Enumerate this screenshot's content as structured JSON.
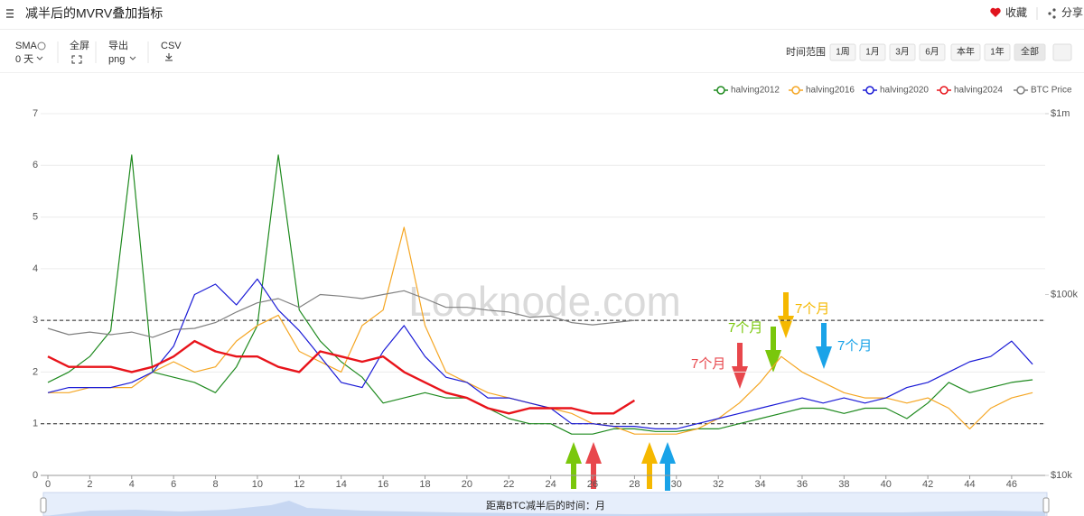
{
  "header": {
    "title": "减半后的MVRV叠加指标",
    "favorite": "收藏",
    "share": "分享"
  },
  "toolbar": {
    "sma_label": "SMA",
    "sma_value": "0 天",
    "fullscreen": "全屏",
    "export_label": "导出",
    "export_value": "png",
    "csv": "CSV",
    "range_label": "时间范围",
    "ranges": [
      "1周",
      "1月",
      "3月",
      "6月",
      "本年",
      "1年",
      "全部"
    ]
  },
  "chart_data": {
    "type": "line",
    "x_label": "距离BTC减半后的时间：月",
    "watermark": "Looknode.com",
    "x": [
      0,
      1,
      2,
      3,
      4,
      5,
      6,
      7,
      8,
      9,
      10,
      11,
      12,
      13,
      14,
      15,
      16,
      17,
      18,
      19,
      20,
      21,
      22,
      23,
      24,
      25,
      26,
      27,
      28,
      29,
      30,
      31,
      32,
      33,
      34,
      35,
      36,
      37,
      38,
      39,
      40,
      41,
      42,
      43,
      44,
      45,
      46,
      47
    ],
    "xlim": [
      0,
      47.6
    ],
    "xticks": [
      0,
      2,
      4,
      6,
      8,
      10,
      12,
      14,
      16,
      18,
      20,
      22,
      24,
      26,
      28,
      30,
      32,
      34,
      36,
      38,
      40,
      42,
      44,
      46
    ],
    "ylim": [
      0,
      7
    ],
    "yticks": [
      0,
      1,
      2,
      3,
      4,
      5,
      6,
      7
    ],
    "y2lim": [
      10000,
      1000000
    ],
    "y2_log": true,
    "y2ticks": [
      {
        "value": 10000,
        "label": "$10k"
      },
      {
        "value": 100000,
        "label": "$100k"
      },
      {
        "value": 1000000,
        "label": "$1m"
      }
    ],
    "grid": true,
    "reference_lines": [
      1,
      3
    ],
    "series": [
      {
        "name": "halving2012",
        "color": "#1f8a1f",
        "values": [
          1.8,
          2.0,
          2.3,
          2.8,
          6.2,
          2.0,
          1.9,
          1.8,
          1.6,
          2.1,
          2.9,
          6.2,
          3.2,
          2.6,
          2.2,
          1.9,
          1.4,
          1.5,
          1.6,
          1.5,
          1.5,
          1.3,
          1.1,
          1.0,
          1.0,
          0.8,
          0.8,
          0.9,
          0.9,
          0.85,
          0.85,
          0.9,
          0.9,
          1.0,
          1.1,
          1.2,
          1.3,
          1.3,
          1.2,
          1.3,
          1.3,
          1.1,
          1.4,
          1.8,
          1.6,
          1.7,
          1.8,
          1.85
        ]
      },
      {
        "name": "halving2016",
        "color": "#f5a623",
        "values": [
          1.6,
          1.6,
          1.7,
          1.7,
          1.7,
          2.0,
          2.2,
          2.0,
          2.1,
          2.6,
          2.9,
          3.1,
          2.4,
          2.2,
          2.0,
          2.9,
          3.2,
          4.8,
          2.9,
          2.0,
          1.8,
          1.6,
          1.5,
          1.4,
          1.3,
          1.2,
          1.0,
          0.95,
          0.8,
          0.8,
          0.8,
          0.9,
          1.1,
          1.4,
          1.8,
          2.3,
          2.0,
          1.8,
          1.6,
          1.5,
          1.5,
          1.4,
          1.5,
          1.3,
          0.9,
          1.3,
          1.5,
          1.6
        ]
      },
      {
        "name": "halving2020",
        "color": "#1a1ad6",
        "values": [
          1.6,
          1.7,
          1.7,
          1.7,
          1.8,
          2.0,
          2.5,
          3.5,
          3.7,
          3.3,
          3.8,
          3.2,
          2.8,
          2.3,
          1.8,
          1.7,
          2.4,
          2.9,
          2.3,
          1.9,
          1.8,
          1.5,
          1.5,
          1.4,
          1.3,
          1.0,
          1.0,
          0.95,
          0.95,
          0.9,
          0.9,
          1.0,
          1.1,
          1.2,
          1.3,
          1.4,
          1.5,
          1.4,
          1.5,
          1.4,
          1.5,
          1.7,
          1.8,
          2.0,
          2.2,
          2.3,
          2.6,
          2.15
        ]
      },
      {
        "name": "halving2024",
        "color": "#e8141b",
        "values": [
          2.3,
          2.1,
          2.1,
          2.1,
          2.0,
          2.1,
          2.3,
          2.6,
          2.4,
          2.3,
          2.3,
          2.1,
          2.0,
          2.4,
          2.3,
          2.2,
          2.3,
          2.0,
          1.8,
          1.6,
          1.5,
          1.3,
          1.2,
          1.3,
          1.3,
          1.3,
          1.2,
          1.2,
          1.45,
          null,
          null,
          null,
          null,
          null,
          null,
          null,
          null,
          null,
          null,
          null,
          null,
          null,
          null,
          null,
          null,
          null,
          null,
          null
        ]
      },
      {
        "name": "BTC Price",
        "color": "#808080",
        "axis": "y2",
        "values": [
          65000,
          60000,
          62000,
          60000,
          62000,
          58000,
          64000,
          65000,
          70000,
          80000,
          90000,
          95000,
          85000,
          100000,
          98000,
          95000,
          100000,
          105000,
          95000,
          85000,
          85000,
          82000,
          80000,
          75000,
          76000,
          70000,
          68000,
          70000,
          72000,
          null,
          null,
          null,
          null,
          null,
          null,
          null,
          null,
          null,
          null,
          null,
          null,
          null,
          null,
          null,
          null,
          null,
          null,
          null
        ]
      }
    ],
    "annotations": [
      {
        "text": "7个月",
        "color": "#e8474c"
      },
      {
        "text": "7个月",
        "color": "#7ac70c"
      },
      {
        "text": "7个月",
        "color": "#f5b800"
      },
      {
        "text": "7个月",
        "color": "#1aa3e8"
      }
    ]
  }
}
